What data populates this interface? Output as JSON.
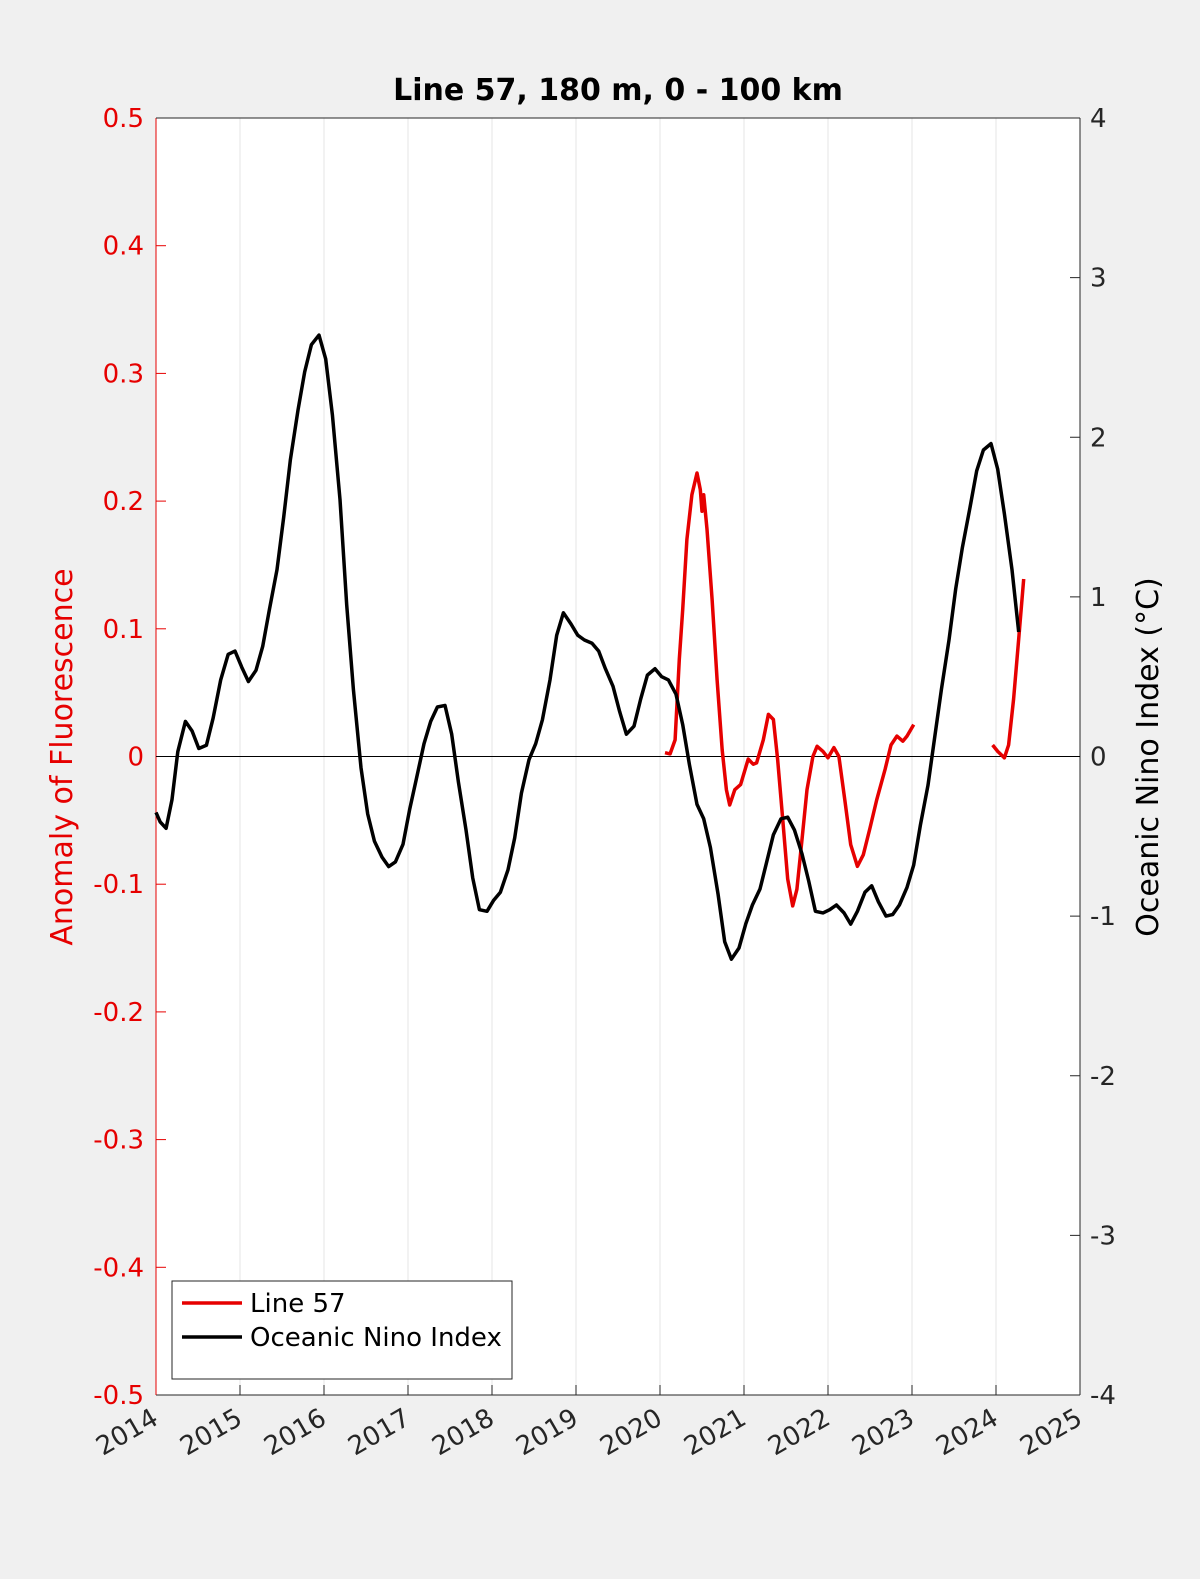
{
  "chart_data": {
    "type": "line",
    "title": "Line 57, 180 m, 0 - 100 km",
    "ylabel": "Anomaly of Fluorescence",
    "y2label": "Oceanic Nino Index (°C)",
    "xlim": [
      2014,
      2025
    ],
    "xticks": [
      2014,
      2015,
      2016,
      2017,
      2018,
      2019,
      2020,
      2021,
      2022,
      2023,
      2024,
      2025
    ],
    "ylim": [
      -0.5,
      0.5
    ],
    "yticks": [
      -0.5,
      -0.4,
      -0.3,
      -0.2,
      -0.1,
      0,
      0.1,
      0.2,
      0.3,
      0.4,
      0.5
    ],
    "y2lim": [
      -4,
      4
    ],
    "y2ticks": [
      -4,
      -3,
      -2,
      -1,
      0,
      1,
      2,
      3,
      4
    ],
    "grid": "x",
    "legend_loc": "lower-left",
    "y_color": "#e60000",
    "series": [
      {
        "name": "Line 57",
        "color": "#e60000",
        "axis": "y",
        "x": [
          2020.06,
          2020.12,
          2020.18,
          2020.23,
          2020.27,
          2020.32,
          2020.38,
          2020.44,
          2020.48,
          2020.5,
          2020.52,
          2020.56,
          2020.62,
          2020.68,
          2020.74,
          2020.79,
          2020.83,
          2020.89,
          2020.96,
          2021.05,
          2021.11,
          2021.15,
          2021.23,
          2021.29,
          2021.35,
          2021.4,
          2021.46,
          2021.52,
          2021.58,
          2021.63,
          2021.69,
          2021.75,
          2021.82,
          2021.87,
          2021.94,
          2022.0,
          2022.07,
          2022.13,
          2022.2,
          2022.27,
          2022.35,
          2022.42,
          2022.5,
          2022.58,
          2022.68,
          2022.75,
          2022.82,
          2022.89,
          2022.94,
          2023.02,
          2023.5,
          2023.96,
          2024.02,
          2024.1,
          2024.15,
          2024.21,
          2024.27,
          2024.33
        ],
        "values": [
          0.003,
          0.002,
          0.013,
          0.076,
          0.115,
          0.17,
          0.205,
          0.222,
          0.209,
          0.192,
          0.205,
          0.178,
          0.123,
          0.06,
          0.005,
          -0.026,
          -0.038,
          -0.026,
          -0.022,
          -0.002,
          -0.006,
          -0.005,
          0.013,
          0.033,
          0.029,
          -0.002,
          -0.048,
          -0.096,
          -0.117,
          -0.104,
          -0.065,
          -0.026,
          0,
          0.008,
          0.004,
          -0.001,
          0.007,
          0,
          -0.034,
          -0.069,
          -0.086,
          -0.077,
          -0.056,
          -0.034,
          -0.01,
          0.009,
          0.016,
          0.012,
          0.016,
          0.025,
          null,
          0.009,
          0.004,
          -0.001,
          0.009,
          0.045,
          0.092,
          0.139
        ]
      },
      {
        "name": "Oceanic Nino Index",
        "color": "#000000",
        "axis": "y2",
        "x": [
          2014.0,
          2014.05,
          2014.12,
          2014.19,
          2014.26,
          2014.35,
          2014.43,
          2014.51,
          2014.6,
          2014.68,
          2014.77,
          2014.86,
          2014.94,
          2015.02,
          2015.1,
          2015.19,
          2015.27,
          2015.35,
          2015.44,
          2015.52,
          2015.6,
          2015.69,
          2015.77,
          2015.85,
          2015.94,
          2016.02,
          2016.1,
          2016.19,
          2016.27,
          2016.35,
          2016.44,
          2016.52,
          2016.6,
          2016.69,
          2016.77,
          2016.85,
          2016.94,
          2017.02,
          2017.1,
          2017.19,
          2017.27,
          2017.35,
          2017.44,
          2017.52,
          2017.6,
          2017.69,
          2017.77,
          2017.85,
          2017.94,
          2018.02,
          2018.1,
          2018.19,
          2018.27,
          2018.35,
          2018.44,
          2018.52,
          2018.6,
          2018.69,
          2018.77,
          2018.85,
          2018.94,
          2019.02,
          2019.1,
          2019.19,
          2019.27,
          2019.35,
          2019.44,
          2019.52,
          2019.6,
          2019.69,
          2019.77,
          2019.85,
          2019.94,
          2020.02,
          2020.1,
          2020.19,
          2020.27,
          2020.35,
          2020.44,
          2020.52,
          2020.6,
          2020.69,
          2020.77,
          2020.85,
          2020.94,
          2021.02,
          2021.1,
          2021.19,
          2021.27,
          2021.35,
          2021.44,
          2021.52,
          2021.6,
          2021.69,
          2021.77,
          2021.85,
          2021.94,
          2022.02,
          2022.1,
          2022.19,
          2022.27,
          2022.35,
          2022.44,
          2022.52,
          2022.6,
          2022.69,
          2022.77,
          2022.85,
          2022.94,
          2023.02,
          2023.1,
          2023.19,
          2023.27,
          2023.35,
          2023.44,
          2023.52,
          2023.6,
          2023.69,
          2023.77,
          2023.85,
          2023.94,
          2024.02,
          2024.1,
          2024.19,
          2024.27
        ],
        "values": [
          -0.35,
          -0.41,
          -0.45,
          -0.27,
          0.03,
          0.22,
          0.16,
          0.05,
          0.07,
          0.24,
          0.48,
          0.64,
          0.66,
          0.56,
          0.47,
          0.54,
          0.69,
          0.92,
          1.17,
          1.5,
          1.86,
          2.17,
          2.41,
          2.58,
          2.64,
          2.49,
          2.14,
          1.61,
          0.95,
          0.42,
          -0.07,
          -0.36,
          -0.53,
          -0.63,
          -0.69,
          -0.66,
          -0.55,
          -0.33,
          -0.14,
          0.08,
          0.22,
          0.31,
          0.32,
          0.14,
          -0.16,
          -0.46,
          -0.76,
          -0.96,
          -0.97,
          -0.9,
          -0.85,
          -0.71,
          -0.51,
          -0.23,
          -0.02,
          0.08,
          0.23,
          0.48,
          0.76,
          0.9,
          0.83,
          0.76,
          0.73,
          0.71,
          0.66,
          0.55,
          0.44,
          0.28,
          0.14,
          0.19,
          0.36,
          0.51,
          0.55,
          0.5,
          0.48,
          0.39,
          0.2,
          -0.05,
          -0.3,
          -0.39,
          -0.57,
          -0.86,
          -1.16,
          -1.27,
          -1.2,
          -1.05,
          -0.93,
          -0.83,
          -0.66,
          -0.49,
          -0.39,
          -0.38,
          -0.46,
          -0.61,
          -0.78,
          -0.97,
          -0.98,
          -0.96,
          -0.93,
          -0.98,
          -1.05,
          -0.97,
          -0.85,
          -0.81,
          -0.91,
          -1.0,
          -0.99,
          -0.93,
          -0.82,
          -0.68,
          -0.43,
          -0.18,
          0.12,
          0.42,
          0.73,
          1.05,
          1.31,
          1.56,
          1.79,
          1.92,
          1.96,
          1.8,
          1.52,
          1.17,
          0.78
        ]
      }
    ]
  }
}
